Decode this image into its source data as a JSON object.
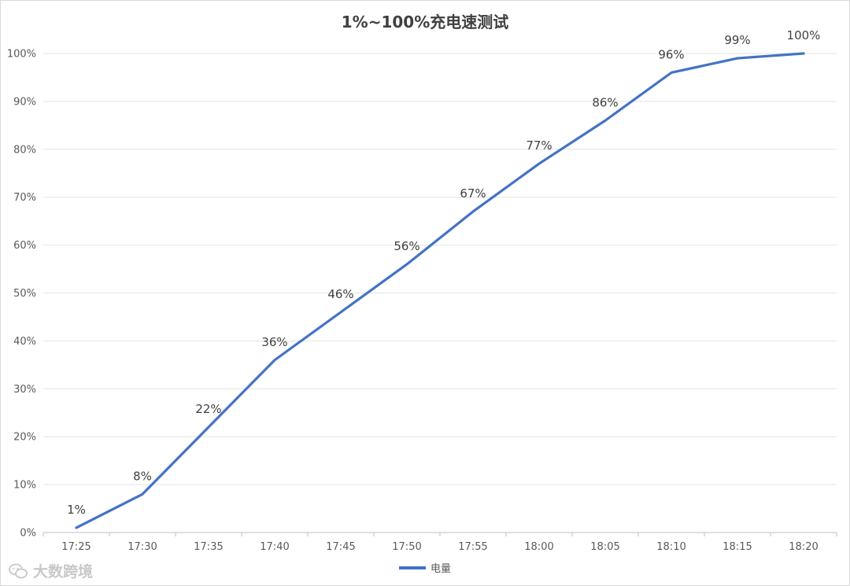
{
  "chart_data": {
    "type": "line",
    "title": "1%~100%充电速测试",
    "categories": [
      "17:25",
      "17:30",
      "17:35",
      "17:40",
      "17:45",
      "17:50",
      "17:55",
      "18:00",
      "18:05",
      "18:10",
      "18:15",
      "18:20"
    ],
    "series": [
      {
        "name": "电量",
        "values": [
          1,
          8,
          22,
          36,
          46,
          56,
          67,
          77,
          86,
          96,
          99,
          100
        ],
        "labels": [
          "1%",
          "8%",
          "22%",
          "36%",
          "46%",
          "56%",
          "67%",
          "77%",
          "86%",
          "96%",
          "99%",
          "100%"
        ],
        "color": "#4472c4"
      }
    ],
    "ylim": [
      0,
      100
    ],
    "y_ticks": [
      "0%",
      "10%",
      "20%",
      "30%",
      "40%",
      "50%",
      "60%",
      "70%",
      "80%",
      "90%",
      "100%"
    ],
    "grid": true,
    "legend_position": "bottom"
  },
  "watermark": {
    "text": "大数跨境",
    "logo_icon": "wechat-logo-icon"
  }
}
